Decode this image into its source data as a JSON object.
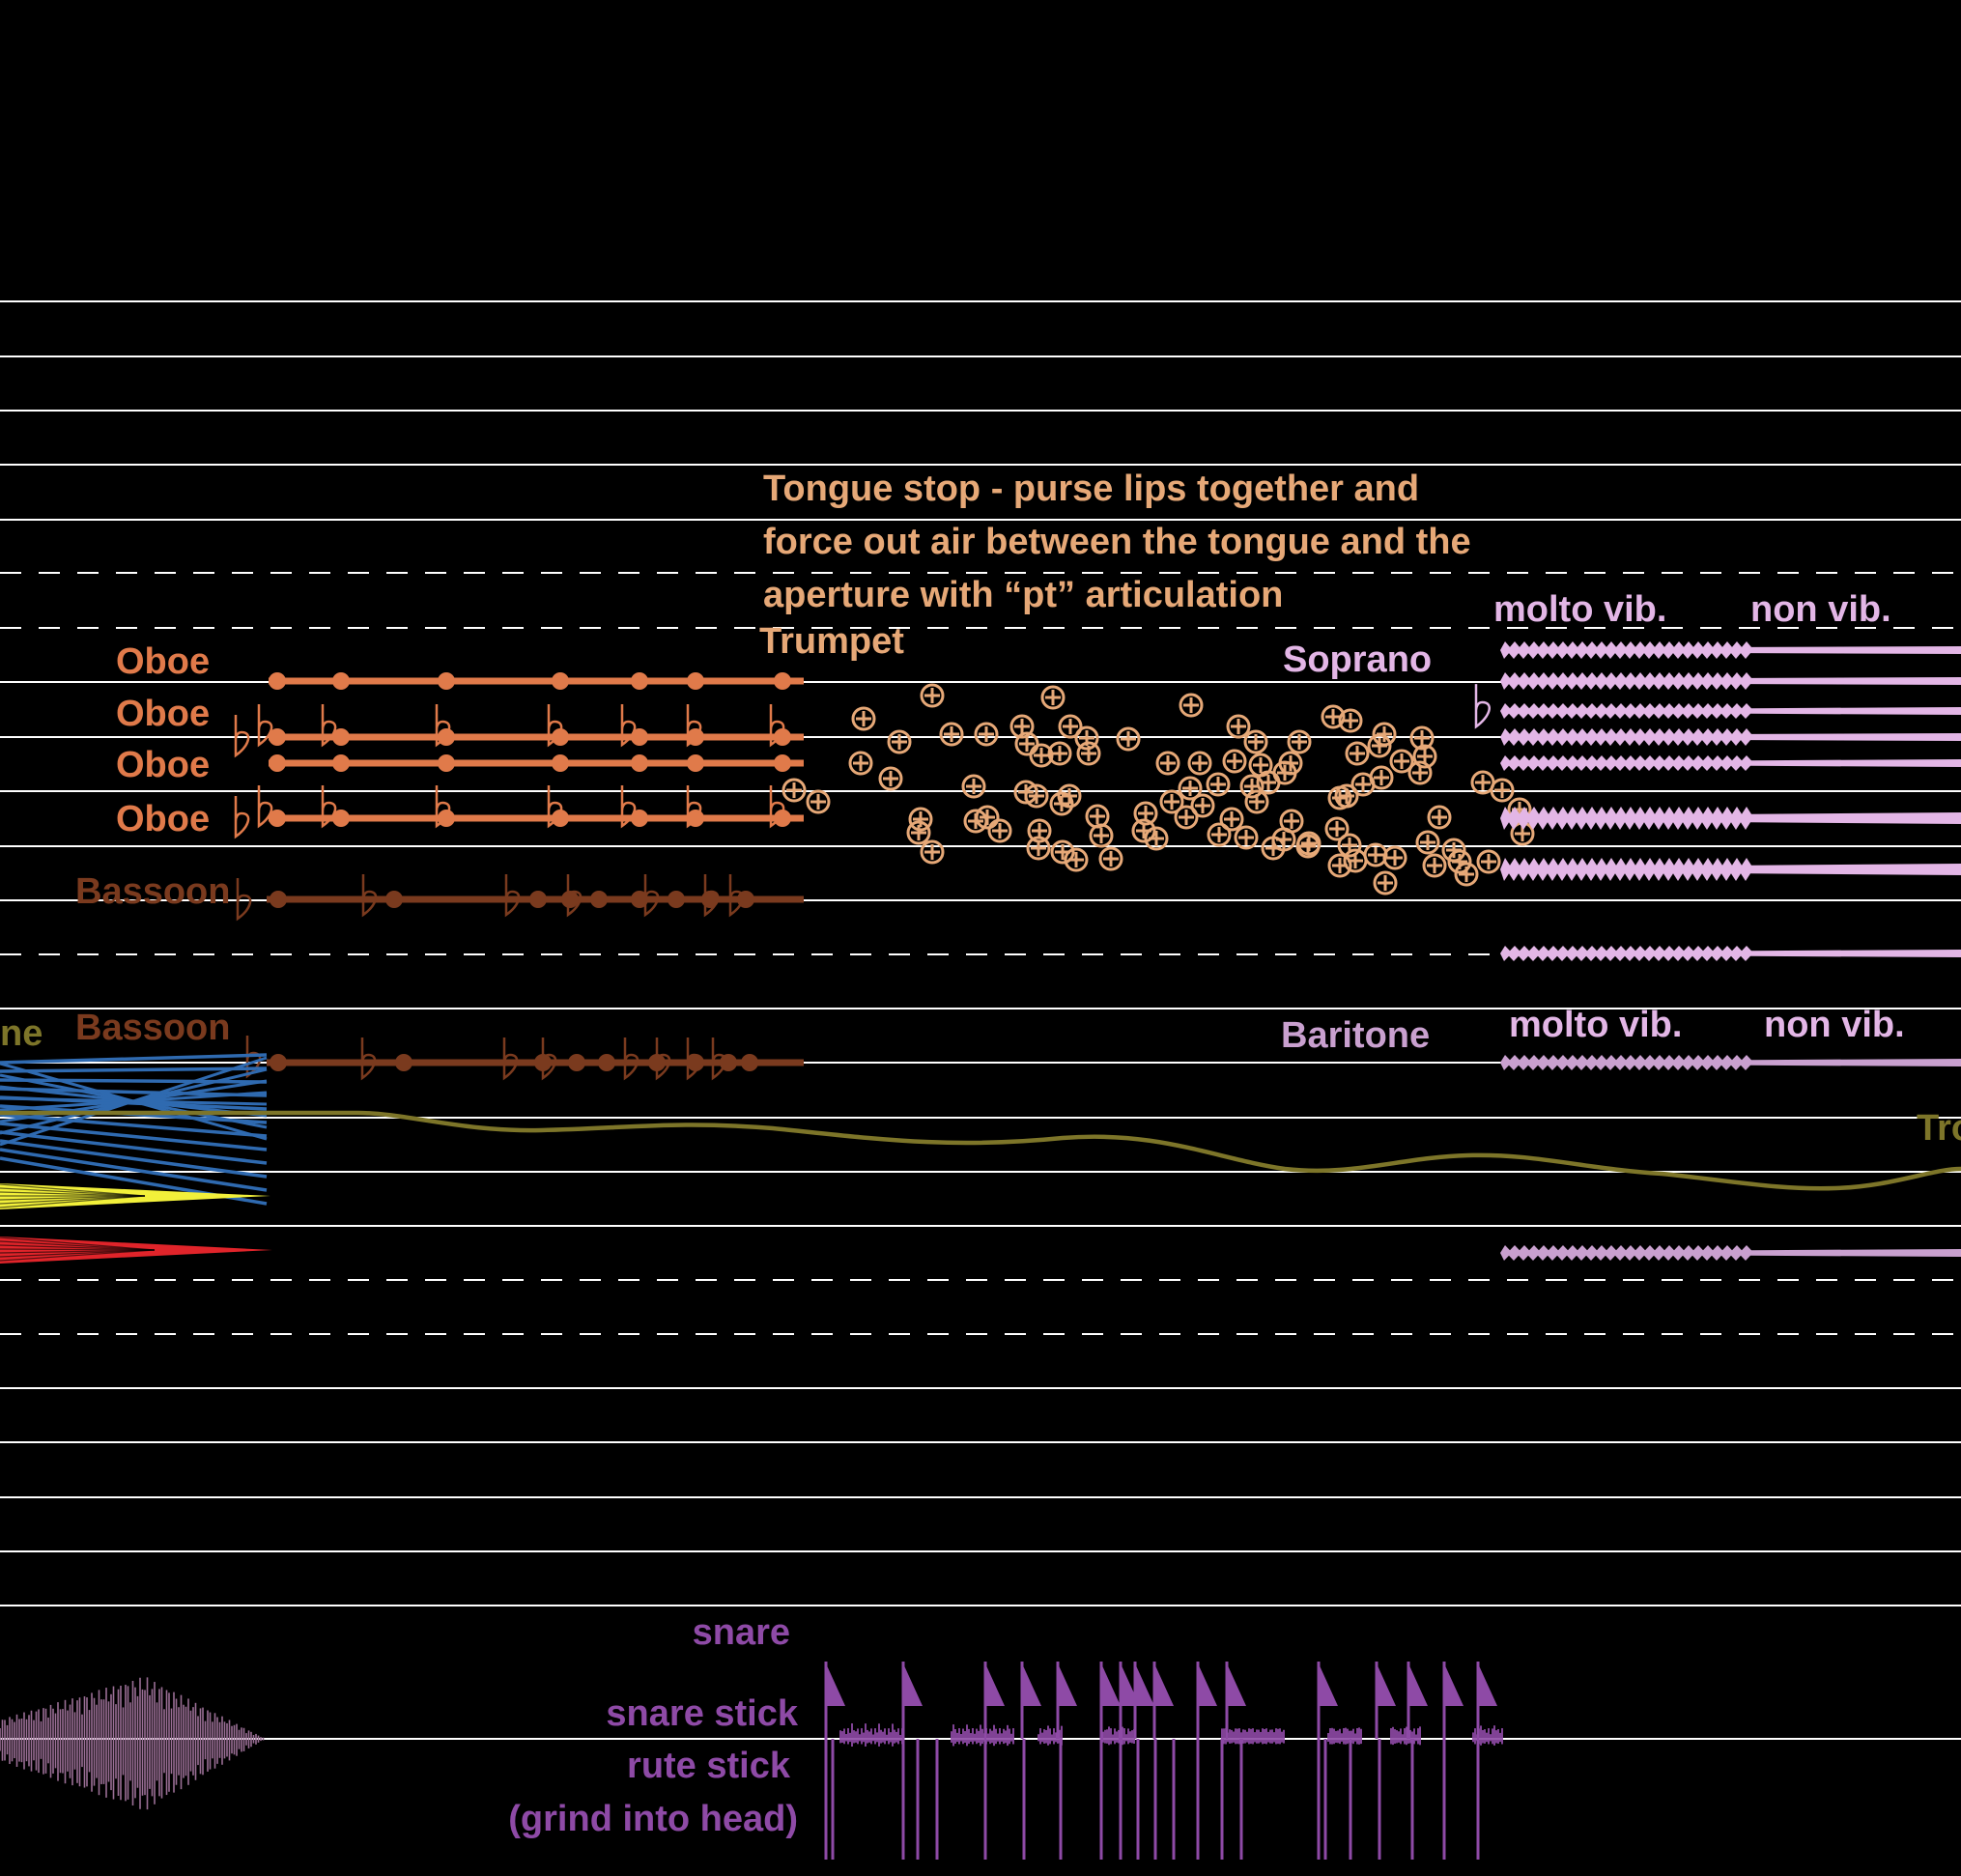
{
  "colors": {
    "background": "#000000",
    "staff_line": "#ffffff",
    "oboe": "#e07a4a",
    "bassoon": "#7a3a1e",
    "trumpet": "#e6a877",
    "soprano": "#e3b6e6",
    "baritone": "#c9a0cf",
    "trombone": "#7d7529",
    "blue_lines": "#2f6ab0",
    "yellow": "#f2f03a",
    "red": "#e0242a",
    "percussion": "#8e4aa6",
    "waveform_left": "#9a6e95"
  },
  "labels": {
    "tongue_stop_line1": "Tongue stop - purse lips together and",
    "tongue_stop_line2": "force out air between the tongue and the",
    "tongue_stop_line3": "aperture with “pt” articulation",
    "trumpet": "Trumpet",
    "oboe_1": "Oboe",
    "oboe_2": "Oboe",
    "oboe_3": "Oboe",
    "oboe_4": "Oboe",
    "bassoon_1": "Bassoon",
    "bassoon_2": "Bassoon",
    "soprano": "Soprano",
    "baritone": "Baritone",
    "molto_vib_1": "molto vib.",
    "non_vib_1": "non vib.",
    "molto_vib_2": "molto vib.",
    "non_vib_2": "non vib.",
    "trombone_partial_left": "ne",
    "trombone_partial_right": "Tro",
    "snare": "snare",
    "snare_stick": "snare stick",
    "rute_stick": "rute stick",
    "grind": "(grind into head)"
  },
  "icons": {
    "flat": "flat-icon",
    "notehead": "notehead-icon",
    "breath_circle": "circled-plus-icon",
    "flag": "triangle-flag-icon"
  }
}
